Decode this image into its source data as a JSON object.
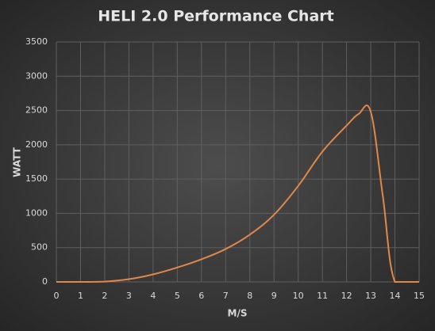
{
  "chart_data": {
    "type": "line",
    "title": "HELI 2.0 Performance Chart",
    "x_label": "M/S",
    "y_label": "WATT",
    "series": [
      {
        "name": "HELI 2.0",
        "color": "#e0874a",
        "x": [
          0,
          1,
          2,
          3,
          4,
          5,
          6,
          7,
          8,
          9,
          10,
          11,
          12,
          12.5,
          13,
          13.5,
          14,
          15
        ],
        "values": [
          0,
          0,
          5,
          40,
          110,
          210,
          330,
          480,
          690,
          980,
          1400,
          1900,
          2280,
          2450,
          2480,
          1250,
          0,
          0
        ]
      }
    ],
    "xlim": [
      0,
      15
    ],
    "xticks": [
      0,
      1,
      2,
      3,
      4,
      5,
      6,
      7,
      8,
      9,
      10,
      11,
      12,
      13,
      14,
      15
    ],
    "ylim": [
      0,
      3500
    ],
    "yticks": [
      0,
      500,
      1000,
      1500,
      2000,
      2500,
      3000,
      3500
    ],
    "grid": true
  }
}
